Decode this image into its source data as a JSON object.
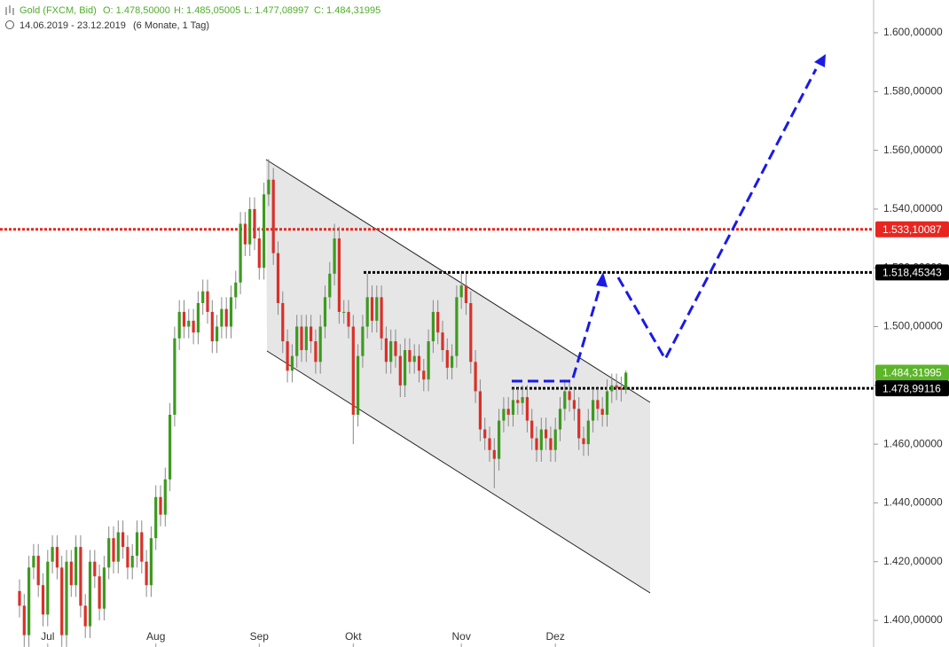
{
  "chart_data": {
    "type": "candlestick",
    "title": "Gold (FXCM, Bid)",
    "ohlc_labels": [
      "O: 1.478,50000",
      "H: 1.485,05005",
      "L: 1.477,08997",
      "C: 1.484,31995"
    ],
    "subtitle": "14.06.2019 - 23.12.2019",
    "period": "(6 Monate, 1 Tag)",
    "categories": [
      null,
      null,
      null,
      null,
      null,
      null,
      "Jul",
      null,
      null,
      null,
      null,
      null,
      null,
      null,
      null,
      null,
      null,
      null,
      null,
      null,
      null,
      null,
      null,
      null,
      null,
      null,
      null,
      null,
      null,
      "Aug",
      null,
      null,
      null,
      null,
      null,
      null,
      null,
      null,
      null,
      null,
      null,
      null,
      null,
      null,
      null,
      null,
      null,
      null,
      null,
      null,
      null,
      "Sep",
      null,
      null,
      null,
      null,
      null,
      null,
      null,
      null,
      null,
      null,
      null,
      null,
      null,
      null,
      null,
      null,
      null,
      null,
      null,
      "Okt",
      null,
      null,
      null,
      null,
      null,
      null,
      null,
      null,
      null,
      null,
      null,
      null,
      null,
      null,
      null,
      null,
      null,
      null,
      null,
      null,
      null,
      null,
      "Nov",
      null,
      null,
      null,
      null,
      null,
      null,
      null,
      null,
      null,
      null,
      null,
      null,
      null,
      null,
      null,
      null,
      null,
      null,
      null,
      "Dez",
      null,
      null,
      null,
      null,
      null,
      null,
      null,
      null,
      null,
      null,
      null,
      null,
      null,
      null,
      null
    ],
    "open": [
      1410,
      1405,
      1395,
      1418,
      1422,
      1412,
      1402,
      1420,
      1425,
      1418,
      1395,
      1420,
      1412,
      1425,
      1405,
      1398,
      1420,
      1415,
      1404,
      1418,
      1428,
      1420,
      1430,
      1425,
      1418,
      1422,
      1430,
      1420,
      1412,
      1428,
      1442,
      1436,
      1448,
      1470,
      1496,
      1505,
      1500,
      1502,
      1498,
      1508,
      1512,
      1505,
      1495,
      1500,
      1506,
      1500,
      1510,
      1515,
      1535,
      1528,
      1540,
      1530,
      1520,
      1545,
      1550,
      1525,
      1508,
      1495,
      1485,
      1490,
      1500,
      1492,
      1500,
      1495,
      1488,
      1500,
      1510,
      1518,
      1530,
      1505,
      1505,
      1500,
      1470,
      1490,
      1500,
      1510,
      1502,
      1510,
      1496,
      1488,
      1495,
      1490,
      1480,
      1492,
      1488,
      1490,
      1485,
      1482,
      1495,
      1505,
      1498,
      1492,
      1486,
      1490,
      1510,
      1514,
      1508,
      1488,
      1478,
      1465,
      1462,
      1458,
      1455,
      1468,
      1472,
      1470,
      1475,
      1474,
      1476,
      1468,
      1462,
      1458,
      1465,
      1462,
      1458,
      1465,
      1472,
      1478,
      1475,
      1472,
      1462,
      1460,
      1468,
      1475,
      1472,
      1470,
      1478,
      1480,
      1479,
      1478.5
    ],
    "high": [
      1414,
      1409,
      1422,
      1426,
      1426,
      1416,
      1424,
      1429,
      1429,
      1422,
      1424,
      1424,
      1429,
      1429,
      1409,
      1424,
      1424,
      1419,
      1422,
      1432,
      1432,
      1434,
      1434,
      1429,
      1426,
      1434,
      1434,
      1424,
      1432,
      1446,
      1446,
      1452,
      1474,
      1500,
      1509,
      1509,
      1506,
      1506,
      1512,
      1516,
      1516,
      1509,
      1504,
      1510,
      1510,
      1514,
      1519,
      1539,
      1539,
      1544,
      1544,
      1534,
      1549,
      1557,
      1554,
      1529,
      1512,
      1499,
      1494,
      1504,
      1504,
      1504,
      1504,
      1499,
      1504,
      1514,
      1522,
      1535,
      1534,
      1509,
      1509,
      1504,
      1494,
      1504,
      1518,
      1514,
      1514,
      1514,
      1500,
      1499,
      1499,
      1494,
      1496,
      1496,
      1494,
      1494,
      1489,
      1499,
      1509,
      1509,
      1502,
      1496,
      1494,
      1514,
      1518,
      1518,
      1512,
      1492,
      1482,
      1469,
      1466,
      1462,
      1472,
      1476,
      1476,
      1479,
      1479,
      1480,
      1480,
      1472,
      1466,
      1469,
      1469,
      1466,
      1469,
      1476,
      1482,
      1482,
      1479,
      1476,
      1466,
      1472,
      1479,
      1479,
      1476,
      1482,
      1484,
      1484,
      1483,
      1485.05005
    ],
    "low": [
      1401,
      1391,
      1391,
      1414,
      1408,
      1398,
      1398,
      1416,
      1414,
      1391,
      1391,
      1408,
      1408,
      1401,
      1394,
      1394,
      1411,
      1400,
      1400,
      1414,
      1416,
      1416,
      1421,
      1414,
      1414,
      1418,
      1416,
      1408,
      1408,
      1424,
      1432,
      1432,
      1444,
      1466,
      1492,
      1496,
      1496,
      1494,
      1494,
      1504,
      1501,
      1491,
      1491,
      1496,
      1496,
      1496,
      1506,
      1511,
      1524,
      1524,
      1526,
      1516,
      1516,
      1541,
      1521,
      1504,
      1491,
      1481,
      1481,
      1486,
      1488,
      1488,
      1491,
      1484,
      1484,
      1496,
      1506,
      1514,
      1501,
      1501,
      1496,
      1460,
      1466,
      1486,
      1496,
      1498,
      1498,
      1492,
      1484,
      1484,
      1486,
      1476,
      1476,
      1484,
      1484,
      1481,
      1478,
      1478,
      1491,
      1494,
      1488,
      1482,
      1482,
      1486,
      1506,
      1504,
      1484,
      1474,
      1461,
      1458,
      1454,
      1445,
      1451,
      1464,
      1466,
      1466,
      1470,
      1470,
      1464,
      1458,
      1454,
      1454,
      1458,
      1454,
      1454,
      1461,
      1468,
      1471,
      1468,
      1458,
      1456,
      1456,
      1464,
      1468,
      1466,
      1466,
      1474,
      1475,
      1474.5,
      1477.08997
    ],
    "close": [
      1405,
      1395,
      1418,
      1422,
      1412,
      1402,
      1420,
      1425,
      1418,
      1395,
      1420,
      1412,
      1425,
      1405,
      1398,
      1420,
      1415,
      1404,
      1418,
      1428,
      1420,
      1430,
      1425,
      1418,
      1422,
      1430,
      1420,
      1412,
      1428,
      1442,
      1436,
      1448,
      1470,
      1496,
      1505,
      1500,
      1502,
      1498,
      1508,
      1512,
      1505,
      1495,
      1500,
      1506,
      1500,
      1510,
      1515,
      1535,
      1528,
      1540,
      1530,
      1520,
      1545,
      1550,
      1525,
      1508,
      1495,
      1485,
      1490,
      1500,
      1492,
      1500,
      1495,
      1488,
      1500,
      1510,
      1518,
      1530,
      1505,
      1505,
      1500,
      1470,
      1490,
      1500,
      1510,
      1502,
      1510,
      1496,
      1488,
      1495,
      1490,
      1480,
      1492,
      1488,
      1490,
      1485,
      1482,
      1495,
      1505,
      1498,
      1492,
      1486,
      1490,
      1510,
      1514,
      1508,
      1488,
      1478,
      1465,
      1462,
      1458,
      1455,
      1468,
      1472,
      1470,
      1475,
      1474,
      1476,
      1468,
      1462,
      1458,
      1465,
      1462,
      1458,
      1465,
      1472,
      1478,
      1475,
      1472,
      1462,
      1460,
      1468,
      1475,
      1472,
      1470,
      1478,
      1480,
      1479,
      1478.5,
      1484.31995
    ],
    "up_color": "#3c9a1f",
    "down_color": "#d9302a",
    "ylim": [
      1390.95,
      1611.16
    ],
    "yticks": [
      {
        "value": 1400,
        "label": "1.400,00000"
      },
      {
        "value": 1420,
        "label": "1.420,00000"
      },
      {
        "value": 1440,
        "label": "1.440,00000"
      },
      {
        "value": 1460,
        "label": "1.460,00000"
      },
      {
        "value": 1480,
        "label": "1.480,00000"
      },
      {
        "value": 1500,
        "label": "1.500,00000"
      },
      {
        "value": 1520,
        "label": "1.520,00000"
      },
      {
        "value": 1540,
        "label": "1.540,00000"
      },
      {
        "value": 1560,
        "label": "1.560,00000"
      },
      {
        "value": 1580,
        "label": "1.580,00000"
      },
      {
        "value": 1600,
        "label": "1.600,00000"
      }
    ],
    "levels": [
      {
        "value": 1533.10087,
        "label": "1.533,10087",
        "color": "#e8261f"
      },
      {
        "value": 1518.45343,
        "label": "1.518,45343",
        "color": "#000000"
      },
      {
        "value": 1484.31995,
        "label": "1.484,31995",
        "color": "#5db52a"
      },
      {
        "value": 1478.99116,
        "label": "1.478,99116",
        "color": "#000000"
      }
    ]
  }
}
